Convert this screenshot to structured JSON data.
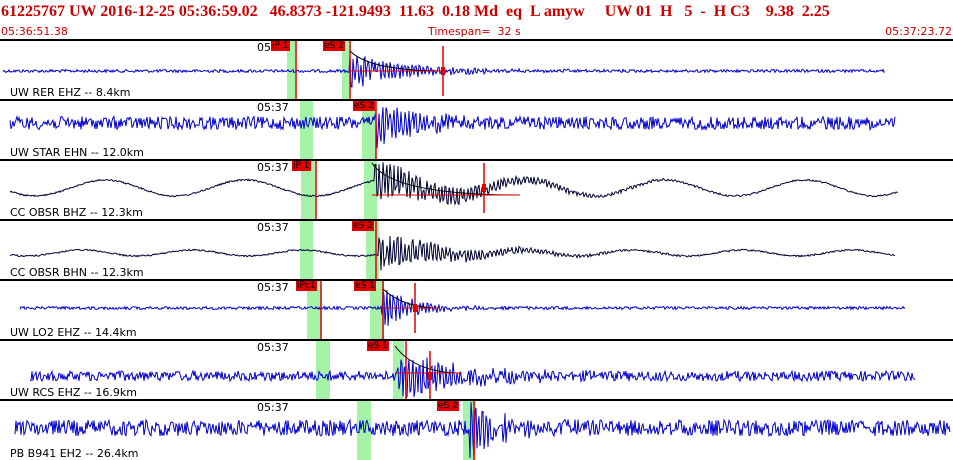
{
  "header": {
    "title": "61225767 UW 2016-12-25 05:36:59.02   46.8373 -121.9493  11.63  0.18 Md  eq  L amyw     UW 01  H   5  -  H C3    9.38  2.25",
    "start_time": "05:36:51.38",
    "timespan": "Timespan=  32 s",
    "end_time": "05:37:23.72"
  },
  "colors": {
    "header_text": "#cc0000",
    "trace_blue": "#0000cc",
    "trace_black": "#000033",
    "pick_red": "#e00000",
    "window_green": "#a6f2a6",
    "coda_red": "#e00000"
  },
  "panels": [
    {
      "label": "UW RER EHZ -- 8.4km",
      "time": "05:37",
      "color": "blue",
      "picks": [
        "iP 1",
        "eS 2"
      ]
    },
    {
      "label": "UW STAR EHN -- 12.0km",
      "time": "05:37",
      "color": "blue",
      "picks": [
        "eS 2"
      ]
    },
    {
      "label": "CC OBSR BHZ -- 12.3km",
      "time": "05:37",
      "color": "black",
      "picks": [
        "iP 1"
      ]
    },
    {
      "label": "CC OBSR BHN -- 12.3km",
      "time": "05:37",
      "color": "black",
      "picks": [
        "eS 2"
      ]
    },
    {
      "label": "UW LO2 EHZ -- 14.4km",
      "time": "05:37",
      "color": "blue",
      "picks": [
        "iPc1",
        "eS 1"
      ]
    },
    {
      "label": "UW RCS EHZ -- 16.9km",
      "time": "05:37",
      "color": "blue",
      "picks": [
        "eS 1"
      ]
    },
    {
      "label": "PB B941 EH2 -- 26.4km",
      "time": "05:37",
      "color": "blue",
      "picks": [
        "eS 2"
      ]
    }
  ]
}
